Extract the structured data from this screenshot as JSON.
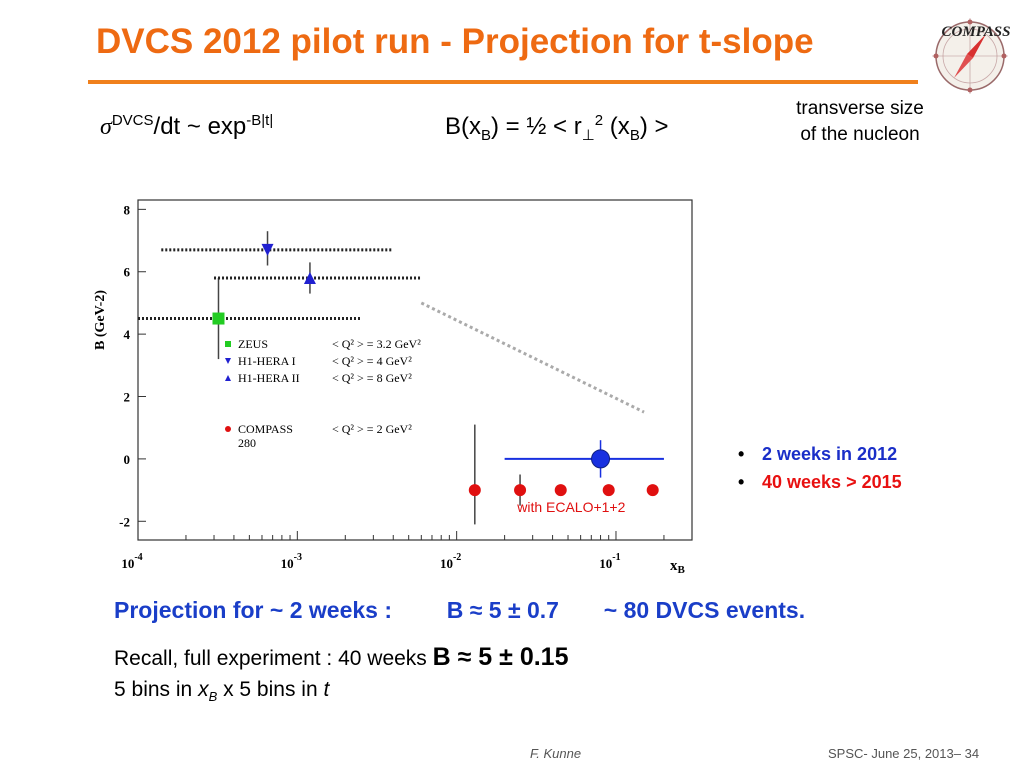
{
  "slide": {
    "title": "DVCS 2012 pilot run - Projection  for  t-slope",
    "logo_text": "COMPASS",
    "formula_left": {
      "sigma": "σ",
      "sup1": "DVCS",
      "mid": "/dt   ~  exp",
      "sup2": "-B|t|"
    },
    "formula_right": {
      "a": "B(x",
      "sub1": "B",
      "b": ")  =  ½ < r",
      "perp": "⊥",
      "sup": "2",
      "c": " (x",
      "sub2": "B",
      "d": ") >"
    },
    "note_line1": "transverse size",
    "note_line2": "of the nucleon",
    "bullets": [
      {
        "text": "2 weeks  in 2012",
        "color": "#1a2ec8"
      },
      {
        "text": "40  weeks > 2015",
        "color": "#e81010"
      }
    ],
    "projection": {
      "part1": "Projection for ~ 2 weeks :",
      "part2": "B  ≈  5 ± 0.7",
      "part3": "~ 80 DVCS events."
    },
    "recall": {
      "text": "Recall, full experiment :  40 weeks ",
      "big": "B  ≈ 5 ± 0.15"
    },
    "bins": {
      "a": "5 bins in ",
      "x": "x",
      "sub": "B",
      "b": "  x  5 bins in ",
      "t": "t"
    },
    "footer_left": "F. Kunne",
    "footer_right": "SPSC- June 25, 2013– 34"
  },
  "chart_data": {
    "type": "scatter",
    "xscale": "log",
    "xlim": [
      0.0001,
      0.3
    ],
    "ylim": [
      -2.6,
      8.3
    ],
    "yticks": [
      -2,
      0,
      2,
      4,
      6,
      8
    ],
    "xtick_labels": [
      {
        "base": "10",
        "exp": "-4",
        "value": 0.0001
      },
      {
        "base": "10",
        "exp": "-3",
        "value": 0.001
      },
      {
        "base": "10",
        "exp": "-2",
        "value": 0.01
      },
      {
        "base": "10",
        "exp": "-1",
        "value": 0.1
      }
    ],
    "xlabel": "xB",
    "ylabel": "B (GeV-2)",
    "series": [
      {
        "name": "ZEUS",
        "marker": "square",
        "color": "#22cc22",
        "points": [
          {
            "x": 0.00032,
            "y": 4.5,
            "xlo": 0.0001,
            "xhi": 0.0025,
            "ylo": 3.2,
            "yhi": 5.8
          }
        ]
      },
      {
        "name": "H1-HERA I",
        "marker": "triangle-down",
        "color": "#2020d0",
        "points": [
          {
            "x": 0.00065,
            "y": 6.7,
            "xlo": 0.00014,
            "xhi": 0.004,
            "ylo": 6.2,
            "yhi": 7.3
          }
        ]
      },
      {
        "name": "H1-HERA II",
        "marker": "triangle-up",
        "color": "#2020d0",
        "points": [
          {
            "x": 0.0012,
            "y": 5.8,
            "xlo": 0.0003,
            "xhi": 0.006,
            "ylo": 5.3,
            "yhi": 6.3
          }
        ]
      },
      {
        "name": "COMPASS",
        "marker": "circle",
        "color": "#e01010",
        "points": [
          {
            "x": 0.013,
            "y": -1.0,
            "ylo": -2.1,
            "yhi": 1.1
          },
          {
            "x": 0.025,
            "y": -1.0,
            "ylo": -1.5,
            "yhi": -0.5
          },
          {
            "x": 0.045,
            "y": -1.0
          },
          {
            "x": 0.09,
            "y": -1.0
          },
          {
            "x": 0.17,
            "y": -1.0
          }
        ]
      },
      {
        "name": "with ECALO+1+2",
        "marker": "circle-large",
        "color": "#1830e0",
        "points": [
          {
            "x": 0.08,
            "y": 0.0,
            "xlo": 0.02,
            "xhi": 0.2,
            "ylo": -0.6,
            "yhi": 0.6
          }
        ]
      }
    ],
    "trend_line": {
      "x": [
        0.006,
        0.15
      ],
      "y": [
        5.0,
        1.5
      ],
      "color": "#aaaaaa"
    },
    "legend": [
      {
        "name": "ZEUS",
        "cond": "< Q² > = 3.2 GeV²",
        "marker": "square",
        "color": "#22cc22"
      },
      {
        "name": "H1-HERA I",
        "cond": "< Q² > = 4 GeV²",
        "marker": "triangle-down",
        "color": "#2020d0"
      },
      {
        "name": "H1-HERA II",
        "cond": "< Q² > = 8 GeV²",
        "marker": "triangle-up",
        "color": "#2020d0"
      },
      {
        "name": "COMPASS",
        "cond": "< Q² > = 2 GeV²",
        "marker": "circle",
        "color": "#e01010",
        "extra": "280"
      }
    ],
    "ecal_label": "with ECALO+1+2"
  }
}
